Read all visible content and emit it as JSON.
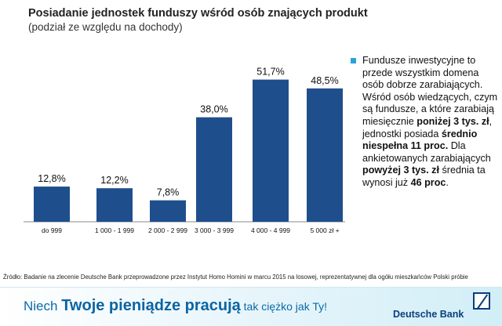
{
  "title": "Posiadanie jednostek funduszy wśród osób znających produkt",
  "subtitle": "(podział ze względu na dochody)",
  "chart_data": {
    "type": "bar",
    "categories": [
      "do 999",
      "1 000 - 1 999",
      "2 000 - 2 999",
      "3 000 - 3 999",
      "4 000 - 4 999",
      "5 000 zł +"
    ],
    "values": [
      12.8,
      12.2,
      7.8,
      38.0,
      51.7,
      48.5
    ],
    "data_labels": [
      "12,8%",
      "12,2%",
      "7,8%",
      "38,0%",
      "51,7%",
      "48,5%"
    ],
    "ylim": [
      0,
      55
    ],
    "grid": false,
    "bar_color": "#1f4e8c"
  },
  "note": {
    "bullet_color": "#2aa3d8",
    "part1": "Fundusze inwestycyjne to przede wszystkim domena osób dobrze zarabiających. Wśród osób wiedzących, czym są fundusze, a które zarabiają miesięcznie ",
    "bold1": "poniżej 3 tys. zł",
    "part2": ", jednostki posiada ",
    "bold2": "średnio niespełna 11 proc.",
    "part3": " Dla ankietowanych zarabiających ",
    "bold3": "powyżej 3 tys. zł",
    "part4": " średnia ta wynosi już ",
    "bold4": "46 proc",
    "part5": "."
  },
  "source": "Źródło: Badanie na zlecenie Deutsche Bank przeprowadzone przez Instytut Homo Homini w marcu 2015 na losowej, reprezentatywnej dla ogółu mieszkańców Polski próbie",
  "footer": {
    "slogan_pre": "Niech ",
    "slogan_bold": "Twoje pieniądze pracują",
    "slogan_post": " tak ciężko jak Ty!",
    "brand": "Deutsche Bank"
  }
}
